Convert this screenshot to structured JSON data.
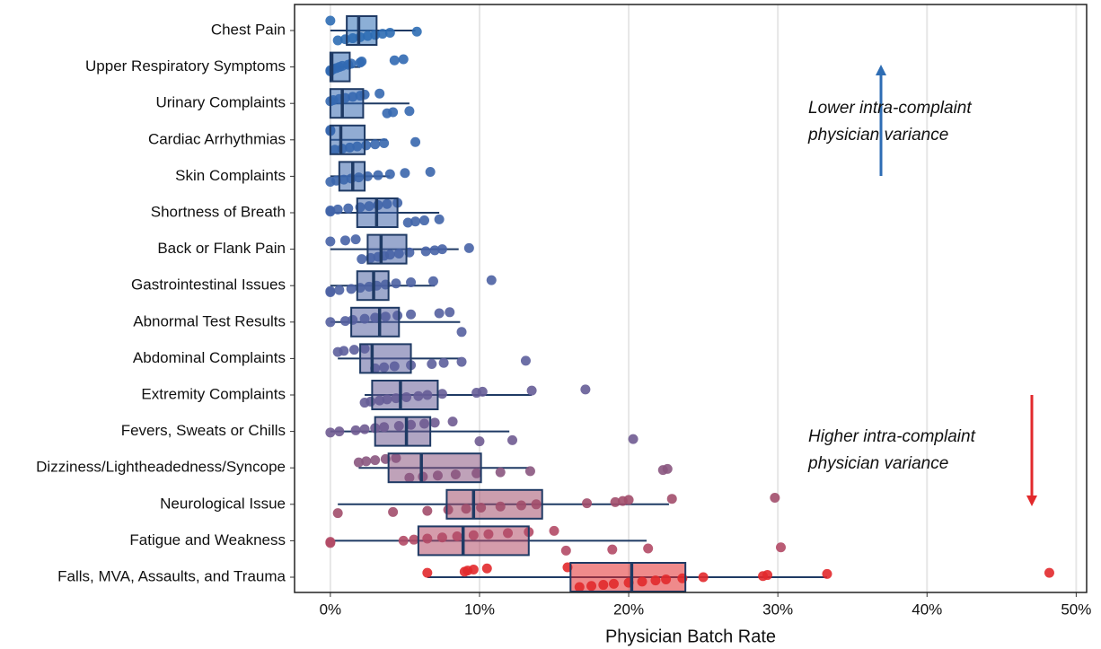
{
  "chart_data": {
    "type": "boxplot",
    "x_label": "Physician Batch Rate",
    "xlim": [
      -2.4,
      50.7
    ],
    "xticks": [
      {
        "value": 0,
        "label": "0%"
      },
      {
        "value": 10,
        "label": "10%"
      },
      {
        "value": 20,
        "label": "20%"
      },
      {
        "value": 30,
        "label": "30%"
      },
      {
        "value": 40,
        "label": "40%"
      },
      {
        "value": 50,
        "label": "50%"
      }
    ],
    "grid": true,
    "categories": [
      "Chest Pain",
      "Upper Respiratory Symptoms",
      "Urinary Complaints",
      "Cardiac Arrhythmias",
      "Skin Complaints",
      "Shortness of Breath",
      "Back or Flank Pain",
      "Gastrointestinal Issues",
      "Abnormal Test Results",
      "Abdominal Complaints",
      "Extremity Complaints",
      "Fevers, Sweats or Chills",
      "Dizziness/Lightheadedness/Syncope",
      "Neurological Issue",
      "Fatigue and Weakness",
      "Falls, MVA, Assaults, and Trauma"
    ],
    "colors": [
      "#2e6db4",
      "#3169b2",
      "#3568b0",
      "#3767ae",
      "#3b66ac",
      "#4064a9",
      "#4763a6",
      "#4d62a3",
      "#5561a0",
      "#5d5f9c",
      "#665d97",
      "#6f5b91",
      "#8a5680",
      "#a24e6c",
      "#b34a66",
      "#e2292c"
    ],
    "boxes": [
      {
        "low": 0,
        "q1": 1.1,
        "median": 1.9,
        "q3": 3.1,
        "high": 5.7
      },
      {
        "low": 0,
        "q1": 0,
        "median": 0.1,
        "q3": 1.3,
        "high": 2.0
      },
      {
        "low": 0,
        "q1": 0,
        "median": 0.8,
        "q3": 2.2,
        "high": 5.3
      },
      {
        "low": 0,
        "q1": 0,
        "median": 0.7,
        "q3": 2.3,
        "high": 3.8
      },
      {
        "low": 0,
        "q1": 0.6,
        "median": 1.5,
        "q3": 2.3,
        "high": 4.0
      },
      {
        "low": 0,
        "q1": 1.8,
        "median": 3.1,
        "q3": 4.5,
        "high": 7.3
      },
      {
        "low": 0,
        "q1": 2.5,
        "median": 3.4,
        "q3": 5.1,
        "high": 8.6
      },
      {
        "low": 0,
        "q1": 1.8,
        "median": 2.9,
        "q3": 3.9,
        "high": 7.0
      },
      {
        "low": 0,
        "q1": 1.4,
        "median": 3.3,
        "q3": 4.6,
        "high": 8.7
      },
      {
        "low": 0.5,
        "q1": 2.0,
        "median": 2.8,
        "q3": 5.4,
        "high": 8.7
      },
      {
        "low": 2.3,
        "q1": 2.8,
        "median": 4.7,
        "q3": 7.2,
        "high": 13.5
      },
      {
        "low": 0,
        "q1": 3.0,
        "median": 5.1,
        "q3": 6.7,
        "high": 12.0
      },
      {
        "low": 1.9,
        "q1": 3.9,
        "median": 6.1,
        "q3": 10.1,
        "high": 13.3
      },
      {
        "low": 0.5,
        "q1": 7.8,
        "median": 9.6,
        "q3": 14.2,
        "high": 22.7
      },
      {
        "low": 0,
        "q1": 5.9,
        "median": 8.9,
        "q3": 13.3,
        "high": 21.2
      },
      {
        "low": 6.5,
        "q1": 16.1,
        "median": 20.2,
        "q3": 23.8,
        "high": 33.3
      }
    ],
    "points": [
      [
        0,
        0.5,
        1,
        1.5,
        2,
        2.5,
        3,
        3.5,
        4,
        5.8
      ],
      [
        0,
        0,
        0.2,
        0.4,
        0.6,
        0.8,
        1.2,
        1.4,
        2.0,
        2.1,
        4.3,
        4.9
      ],
      [
        0,
        0.2,
        0.6,
        1,
        1.5,
        2,
        2.3,
        3.3,
        3.8,
        4.2,
        5.3
      ],
      [
        0,
        0,
        0.3,
        0.8,
        1.3,
        1.8,
        2.4,
        3.0,
        3.6,
        5.7
      ],
      [
        0,
        0.4,
        0.9,
        1.4,
        1.9,
        2.5,
        3.2,
        4.0,
        5.0,
        6.7
      ],
      [
        0,
        0,
        0.5,
        1.2,
        2,
        2.6,
        3.2,
        3.8,
        4.5,
        5.2,
        5.7,
        6.3,
        7.3
      ],
      [
        0,
        1,
        1.7,
        2.1,
        2.7,
        3.2,
        3.6,
        4.0,
        4.6,
        5.3,
        6.4,
        7.0,
        7.5,
        9.3
      ],
      [
        0,
        0,
        0.6,
        1.4,
        2,
        2.6,
        3.1,
        3.7,
        4.4,
        5.4,
        6.9,
        10.8
      ],
      [
        0,
        1,
        1.5,
        2.3,
        3,
        3.7,
        4.5,
        5.4,
        7.3,
        8.0,
        8.8
      ],
      [
        0.5,
        0.9,
        1.6,
        2.3,
        3,
        3.6,
        4.3,
        5.4,
        6.8,
        7.6,
        8.8,
        13.1
      ],
      [
        2.3,
        2.7,
        3.3,
        3.8,
        4.4,
        5.1,
        5.9,
        6.5,
        7.5,
        9.8,
        10.2,
        13.5,
        17.1
      ],
      [
        0,
        0.6,
        1.7,
        2.3,
        3.0,
        3.6,
        4.6,
        5.4,
        6.3,
        7.0,
        8.2,
        10.0,
        12.2,
        20.3
      ],
      [
        1.9,
        2.4,
        3,
        3.7,
        4.4,
        5.3,
        6.2,
        7.2,
        8.4,
        9.8,
        11.4,
        13.4,
        22.3,
        22.6
      ],
      [
        0.5,
        4.2,
        6.5,
        7.9,
        9.1,
        10.1,
        11.4,
        12.8,
        13.8,
        17.2,
        19.1,
        19.6,
        20,
        22.9,
        29.8
      ],
      [
        0,
        0,
        4.9,
        5.6,
        6.5,
        7.5,
        8.5,
        9.6,
        10.6,
        11.9,
        13.3,
        15,
        15.8,
        18.9,
        21.3,
        30.2
      ],
      [
        6.5,
        9.0,
        9.2,
        9.6,
        10.5,
        15.9,
        16.7,
        17.5,
        18.3,
        19,
        20,
        20.9,
        21.8,
        22.5,
        23.6,
        25,
        29,
        29.3,
        33.3,
        48.2
      ]
    ],
    "annotations": [
      {
        "lines": [
          "Lower intra-complaint",
          "physician variance"
        ],
        "color": "#2e6db4"
      },
      {
        "lines": [
          "Higher intra-complaint",
          "physician variance"
        ],
        "color": "#e2292c"
      }
    ]
  }
}
